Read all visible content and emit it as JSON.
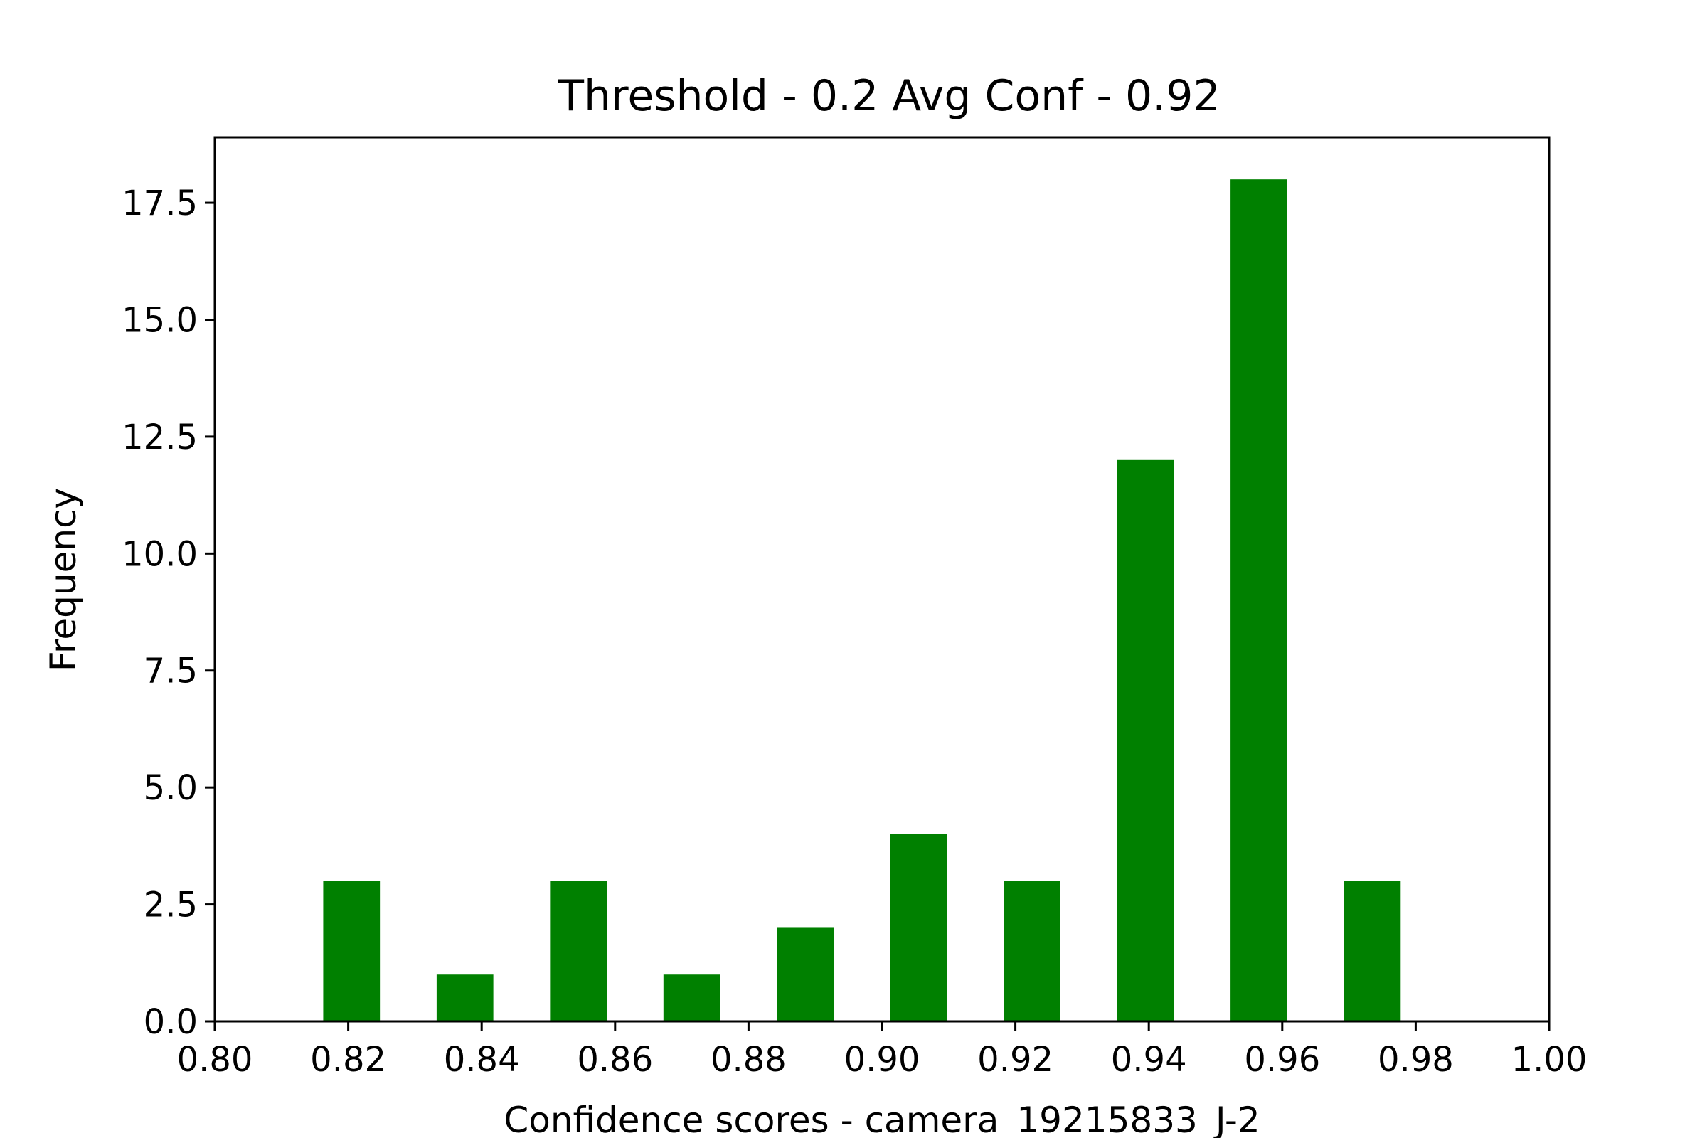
{
  "chart_data": {
    "type": "bar",
    "title": "Threshold - 0.2 Avg Conf - 0.92",
    "xlabel": "Confidence scores - camera_19215833_J-2",
    "ylabel": "Frequency",
    "xlim": [
      0.8,
      1.0
    ],
    "ylim": [
      0,
      18.9
    ],
    "x_ticks": [
      "0.80",
      "0.82",
      "0.84",
      "0.86",
      "0.88",
      "0.90",
      "0.92",
      "0.94",
      "0.96",
      "0.98",
      "1.00"
    ],
    "y_ticks": [
      "0.0",
      "2.5",
      "5.0",
      "7.5",
      "10.0",
      "12.5",
      "15.0",
      "17.5"
    ],
    "bin_width": 0.0085,
    "bars": [
      {
        "x": 0.8205,
        "value": 3
      },
      {
        "x": 0.8375,
        "value": 1
      },
      {
        "x": 0.8545,
        "value": 3
      },
      {
        "x": 0.8715,
        "value": 1
      },
      {
        "x": 0.8885,
        "value": 2
      },
      {
        "x": 0.9055,
        "value": 4
      },
      {
        "x": 0.9225,
        "value": 3
      },
      {
        "x": 0.9395,
        "value": 12
      },
      {
        "x": 0.9565,
        "value": 18
      },
      {
        "x": 0.9735,
        "value": 3
      }
    ],
    "bar_color": "#008000",
    "grid": false,
    "legend": "none"
  }
}
